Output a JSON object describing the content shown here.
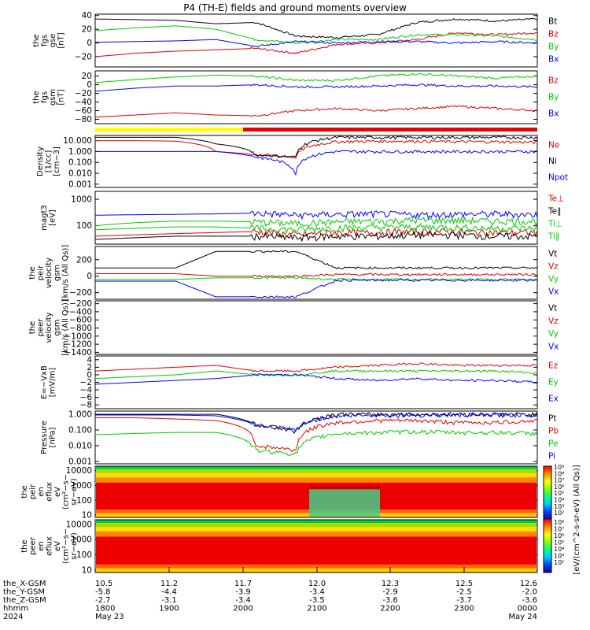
{
  "title": "P4 (TH-E) fields and ground moments overview",
  "colors": {
    "black": "#000000",
    "red": "#e00000",
    "green": "#00cc00",
    "blue": "#0000ff",
    "yellow": "#ffff00",
    "bar_red": "#ee0000"
  },
  "ephemeris": {
    "rows": [
      {
        "label": "the_X-GSM",
        "values": [
          "10.5",
          "11.2",
          "11.7",
          "12.0",
          "12.3",
          "12.5",
          "12.6"
        ]
      },
      {
        "label": "the_Y-GSM",
        "values": [
          "-5.8",
          "-4.4",
          "-3.9",
          "-3.4",
          "-2.9",
          "-2.5",
          "-2.0"
        ]
      },
      {
        "label": "the_Z-GSM",
        "values": [
          "-2.7",
          "-3.1",
          "-3.4",
          "-3.5",
          "-3.6",
          "-3.7",
          "-3.6"
        ]
      },
      {
        "label": "hhmm",
        "values": [
          "1800",
          "1900",
          "2000",
          "2100",
          "2200",
          "2300",
          "0000"
        ]
      },
      {
        "label": "2024",
        "values": [
          "May 23",
          "",
          "",
          "",
          "",
          "",
          "May 24"
        ]
      }
    ]
  },
  "chart_data": [
    {
      "type": "line",
      "panel": "fgs_gse",
      "ylabel": [
        "the",
        "fgs",
        "gse",
        "[nT]"
      ],
      "yticks": [
        "40",
        "20",
        "0",
        "−20"
      ],
      "ylim": [
        -35,
        42
      ],
      "legend": [
        "Bt",
        "Bz",
        "By",
        "Bx"
      ],
      "legend_colors": [
        "black",
        "red",
        "green",
        "blue"
      ],
      "series": [
        {
          "name": "Bt",
          "color": "black",
          "values": [
            35,
            34,
            33,
            28,
            30,
            10,
            8,
            12,
            30,
            35,
            32,
            35
          ]
        },
        {
          "name": "Bz",
          "color": "red",
          "values": [
            -20,
            -15,
            -12,
            -10,
            -8,
            -15,
            -2,
            0,
            5,
            15,
            12,
            15
          ]
        },
        {
          "name": "By",
          "color": "green",
          "values": [
            18,
            22,
            25,
            20,
            5,
            0,
            5,
            5,
            12,
            12,
            10,
            5
          ]
        },
        {
          "name": "Bx",
          "color": "blue",
          "values": [
            1,
            2,
            3,
            5,
            -5,
            2,
            0,
            2,
            2,
            0,
            2,
            0
          ]
        }
      ]
    },
    {
      "type": "line",
      "panel": "fgs_gsm",
      "ylabel": [
        "the",
        "fgs",
        "gsm",
        "[nT]"
      ],
      "yticks": [
        "20",
        "0",
        "−20",
        "−40",
        "−60",
        "−80"
      ],
      "ylim": [
        -90,
        32
      ],
      "legend": [
        "Bz",
        "By",
        "Bx"
      ],
      "legend_colors": [
        "red",
        "green",
        "blue"
      ],
      "series": [
        {
          "name": "Bz",
          "color": "red",
          "values": [
            -75,
            -70,
            -65,
            -70,
            -72,
            -60,
            -55,
            -60,
            -55,
            -50,
            -55,
            -60
          ]
        },
        {
          "name": "By",
          "color": "green",
          "values": [
            5,
            12,
            18,
            22,
            20,
            10,
            10,
            20,
            25,
            20,
            15,
            20
          ]
        },
        {
          "name": "Bx",
          "color": "blue",
          "values": [
            -15,
            -8,
            -3,
            -3,
            0,
            -5,
            -5,
            -3,
            0,
            -3,
            -3,
            -5
          ]
        }
      ]
    },
    {
      "type": "line",
      "panel": "density",
      "ylabel": [
        "Density",
        "[1/cc]",
        "[cm−3]"
      ],
      "yticks": [
        "10.000",
        "1.000",
        "0.100",
        "0.010",
        "0.001"
      ],
      "log": true,
      "ylim": [
        0.0005,
        30
      ],
      "legend": [
        "Ne",
        "Ni",
        "Npot"
      ],
      "legend_colors": [
        "red",
        "black",
        "blue"
      ],
      "series": [
        {
          "name": "Ne",
          "color": "red",
          "values": [
            10,
            10,
            9,
            1,
            0.5,
            0.3,
            8,
            9,
            9,
            8,
            8,
            7
          ]
        },
        {
          "name": "Ni",
          "color": "black",
          "values": [
            20,
            20,
            20,
            5,
            0.5,
            0.3,
            20,
            20,
            20,
            20,
            20,
            20
          ]
        },
        {
          "name": "Npot",
          "color": "blue",
          "values": [
            1,
            1,
            1,
            1,
            0.3,
            0.003,
            1,
            1,
            1,
            1,
            1,
            1
          ]
        }
      ]
    },
    {
      "type": "line",
      "panel": "magt3",
      "ylabel": [
        "magt3",
        "[eV]"
      ],
      "yticks": [
        "1000",
        "100"
      ],
      "log": true,
      "ylim": [
        20,
        2000
      ],
      "legend": [
        "Te⊥",
        "Te∥",
        "Ti⊥",
        "Ti∥"
      ],
      "legend_colors": [
        "red",
        "black",
        "green",
        "green"
      ],
      "series": [
        {
          "name": "Te⊥",
          "color": "red",
          "values": [
            40,
            45,
            50,
            55,
            60,
            45,
            55,
            55,
            60,
            60,
            55,
            55
          ]
        },
        {
          "name": "Te∥",
          "color": "black",
          "values": [
            30,
            35,
            40,
            40,
            40,
            35,
            40,
            40,
            45,
            45,
            40,
            40
          ]
        },
        {
          "name": "Ti⊥",
          "color": "green",
          "values": [
            100,
            130,
            150,
            150,
            140,
            120,
            140,
            150,
            160,
            160,
            150,
            150
          ]
        },
        {
          "name": "Ti∥",
          "color": "green",
          "values": [
            70,
            80,
            90,
            90,
            80,
            70,
            85,
            85,
            90,
            85,
            80,
            80
          ]
        },
        {
          "name": "Ti",
          "color": "blue",
          "values": [
            250,
            260,
            270,
            280,
            300,
            250,
            270,
            280,
            260,
            270,
            280,
            260
          ]
        }
      ]
    },
    {
      "type": "line",
      "panel": "peir_velocity",
      "ylabel": [
        "the",
        "peir",
        "velocity",
        "gsm",
        "[km/s (All Qs)]"
      ],
      "yticks": [
        "200",
        "0",
        "−200"
      ],
      "ylim": [
        -280,
        360
      ],
      "legend": [
        "Vt",
        "Vz",
        "Vy",
        "Vx"
      ],
      "legend_colors": [
        "black",
        "red",
        "green",
        "blue"
      ],
      "series": [
        {
          "name": "Vt",
          "color": "black",
          "values": [
            100,
            100,
            100,
            300,
            300,
            300,
            100,
            100,
            100,
            100,
            100,
            100
          ]
        },
        {
          "name": "Vz",
          "color": "red",
          "values": [
            30,
            30,
            30,
            0,
            0,
            0,
            20,
            20,
            20,
            20,
            20,
            20
          ]
        },
        {
          "name": "Vy",
          "color": "green",
          "values": [
            -40,
            -40,
            -40,
            -20,
            -20,
            -20,
            -40,
            -40,
            -40,
            -40,
            -40,
            -40
          ]
        },
        {
          "name": "Vx",
          "color": "blue",
          "values": [
            -60,
            -60,
            -60,
            -250,
            -250,
            -250,
            -50,
            -50,
            -50,
            -50,
            -50,
            -50
          ]
        }
      ]
    },
    {
      "type": "line",
      "panel": "peer_velocity",
      "ylabel": [
        "the",
        "peer",
        "velocity",
        "gsm",
        "[km/s (All Qs)]"
      ],
      "yticks": [
        "−200",
        "−400",
        "−600",
        "−800",
        "−1000",
        "−1200",
        "−1400"
      ],
      "ylim": [
        -1450,
        -130
      ],
      "legend": [
        "Vt",
        "Vz",
        "Vy",
        "Vx"
      ],
      "legend_colors": [
        "black",
        "red",
        "green",
        "blue"
      ],
      "series": []
    },
    {
      "type": "line",
      "panel": "e_field",
      "ylabel": [
        "E=−VxB",
        "[mV/m]"
      ],
      "yticks": [
        "4",
        "2",
        "0",
        "−2",
        "−4",
        "−6",
        "−8"
      ],
      "ylim": [
        -9,
        5
      ],
      "legend": [
        "Ez",
        "Ey",
        "Ex"
      ],
      "legend_colors": [
        "red",
        "green",
        "blue"
      ],
      "series": [
        {
          "name": "Ez",
          "color": "red",
          "values": [
            1,
            1.5,
            2,
            2.5,
            1,
            1,
            2,
            2.5,
            3,
            2.5,
            2.5,
            2.5
          ]
        },
        {
          "name": "Ey",
          "color": "green",
          "values": [
            -1,
            -0.5,
            0,
            1,
            0,
            0,
            1,
            1,
            1,
            1,
            1,
            0.5
          ]
        },
        {
          "name": "Ex",
          "color": "blue",
          "values": [
            -2.5,
            -2,
            -1.5,
            -1,
            0,
            0,
            -1,
            -1.5,
            -1,
            -1.5,
            -1.5,
            -2
          ]
        }
      ]
    },
    {
      "type": "line",
      "panel": "pressure",
      "ylabel": [
        "Pressure",
        "[nPa]"
      ],
      "yticks": [
        "1.000",
        "0.100",
        "0.010",
        "0.001"
      ],
      "log": true,
      "ylim": [
        0.0007,
        1.6
      ],
      "legend": [
        "Pt",
        "Pb",
        "Pe",
        "Pi"
      ],
      "legend_colors": [
        "black",
        "red",
        "green",
        "blue"
      ],
      "series": [
        {
          "name": "Pt",
          "color": "black",
          "values": [
            1,
            1,
            1,
            1,
            0.2,
            0.08,
            1,
            1,
            1,
            1,
            1,
            1
          ]
        },
        {
          "name": "Pb",
          "color": "red",
          "values": [
            0.6,
            0.6,
            0.5,
            0.4,
            0.01,
            0.005,
            0.3,
            0.4,
            0.4,
            0.3,
            0.3,
            0.4
          ]
        },
        {
          "name": "Pe",
          "color": "green",
          "values": [
            0.05,
            0.06,
            0.07,
            0.07,
            0.005,
            0.003,
            0.06,
            0.07,
            0.08,
            0.07,
            0.07,
            0.06
          ]
        },
        {
          "name": "Pi",
          "color": "blue",
          "values": [
            0.9,
            0.9,
            0.9,
            0.8,
            0.2,
            0.1,
            0.8,
            0.9,
            0.9,
            0.9,
            0.9,
            0.9
          ]
        }
      ]
    },
    {
      "type": "heatmap",
      "panel": "peir_en_eflux",
      "ylabel": [
        "the",
        "peir",
        "en",
        "eflux",
        "eV",
        "(cm²−s−",
        "sr−eV)"
      ],
      "yticks": [
        "10000",
        "1000",
        "100",
        "10"
      ],
      "log": true,
      "ylim": [
        7,
        20000
      ]
    },
    {
      "type": "heatmap",
      "panel": "peer_en_eflux",
      "ylabel": [
        "the",
        "peer",
        "en",
        "eflux",
        "eV",
        "(cm²−s−",
        "sr−eV)"
      ],
      "yticks": [
        "10000",
        "1000",
        "100",
        "10"
      ],
      "log": true,
      "ylim": [
        7,
        20000
      ]
    }
  ],
  "colorbar": {
    "label": "[eV/(cm^2-s-sr-eV) (All Qs)]",
    "ticks_top": [
      "10⁹",
      "10⁸",
      "10⁷",
      "10⁶",
      "10⁵",
      "10⁴",
      "10³",
      "10²"
    ],
    "ticks_bottom": [
      "10⁸",
      "10⁷",
      "10⁶",
      "10⁵",
      "10⁴",
      "10³",
      "10²"
    ]
  }
}
